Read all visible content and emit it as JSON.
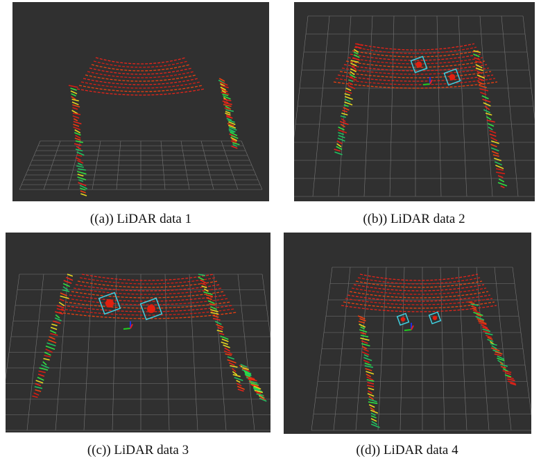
{
  "figure": {
    "subfigures": [
      {
        "caption": "((a)) LiDAR data 1"
      },
      {
        "caption": "((b)) LiDAR data 2"
      },
      {
        "caption": "((c)) LiDAR data 3"
      },
      {
        "caption": "((d)) LiDAR data 4"
      }
    ]
  }
}
